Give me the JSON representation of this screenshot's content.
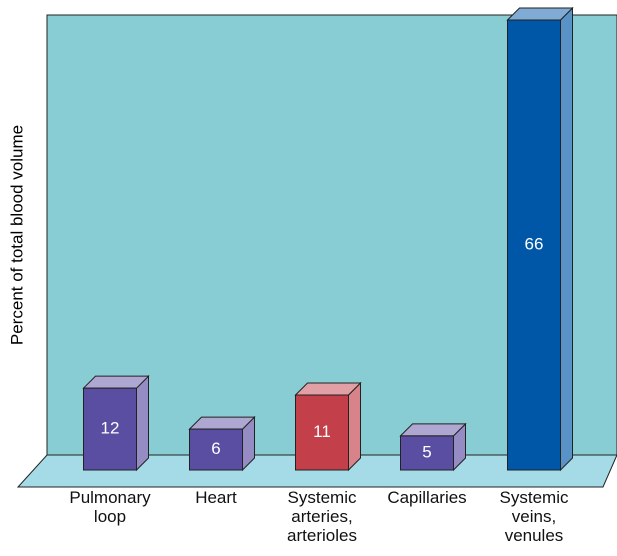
{
  "chart_data": {
    "type": "bar3d",
    "y_label": "Percent of total blood volume",
    "categories": [
      "Pulmonary\nloop",
      "Heart",
      "Systemic\narteries,\narterioles",
      "Capillaries",
      "Systemic\nveins,\nvenules"
    ],
    "values": [
      12,
      6,
      11,
      5,
      66
    ],
    "colors": [
      "#5a4ea2",
      "#5a4ea2",
      "#c3404a",
      "#5a4ea2",
      "#0057a8"
    ],
    "ylim": [
      0,
      66
    ]
  }
}
